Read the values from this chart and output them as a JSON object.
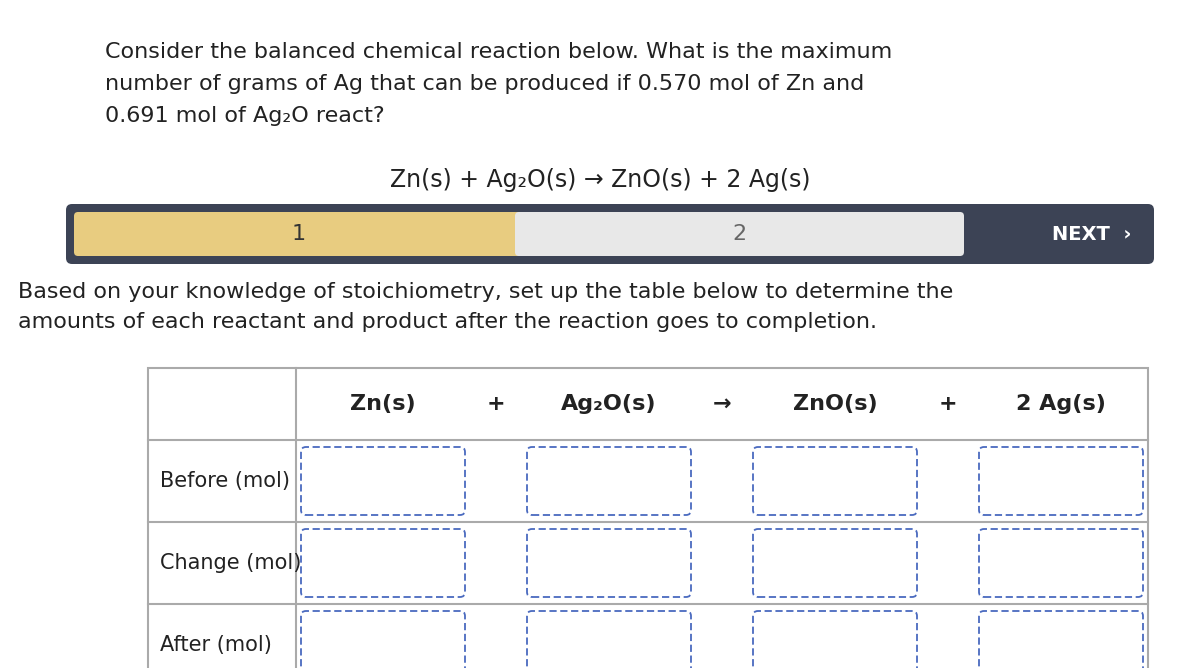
{
  "bg_color": "#ffffff",
  "title_lines": [
    "Consider the balanced chemical reaction below. What is the maximum",
    "number of grams of Ag that can be produced if 0.570 mol of Zn and",
    "0.691 mol of Ag₂O react?"
  ],
  "equation": "Zn(s) + Ag₂O(s) → ZnO(s) + 2 Ag(s)",
  "nav_bar_bg": "#3c4355",
  "nav_step1_color": "#e8cc80",
  "nav_step1_text": "1",
  "nav_step2_color": "#e8e8e8",
  "nav_step2_text": "2",
  "nav_next_text": "NEXT  ›",
  "body_lines": [
    "Based on your knowledge of stoichiometry, set up the table below to determine the",
    "amounts of each reactant and product after the reaction goes to completion."
  ],
  "table_header": [
    "Zn(s)",
    "+",
    "Ag₂O(s)",
    "→",
    "ZnO(s)",
    "+",
    "2 Ag(s)"
  ],
  "row_labels": [
    "Before (mol)",
    "Change (mol)",
    "After (mol)"
  ],
  "input_border_color": "#4a6abf",
  "table_border_color": "#aaaaaa",
  "text_color": "#222222",
  "title_fontsize": 16,
  "equation_fontsize": 17,
  "body_fontsize": 16,
  "table_fontsize": 15,
  "nav_fontsize": 14
}
